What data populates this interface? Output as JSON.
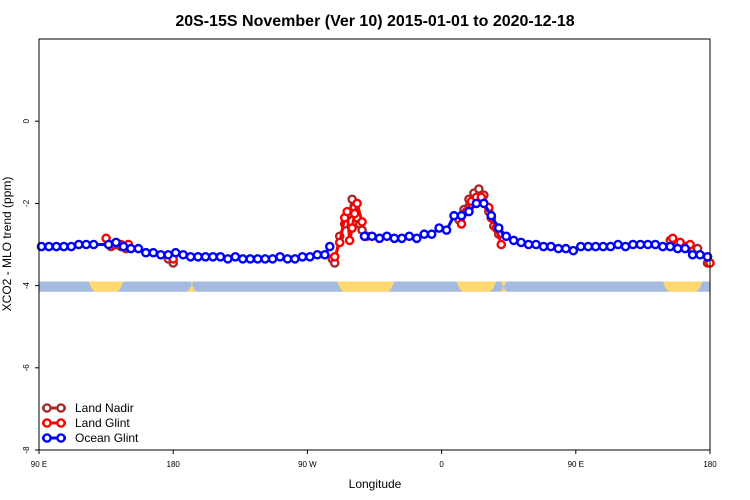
{
  "chart_data": {
    "type": "line",
    "title": "20S-15S November (Ver 10)   2015-01-01 to 2020-12-18",
    "xlabel": "Longitude",
    "ylabel": "XCO2 - MLO trend (ppm)",
    "xlim": [
      -90,
      180
    ],
    "ylim": [
      -8,
      2
    ],
    "x_ticks": [
      {
        "value": -90,
        "label": "90 E"
      },
      {
        "value": -36,
        "label": "180"
      },
      {
        "value": 18,
        "label": "90 W"
      },
      {
        "value": 72,
        "label": "0"
      },
      {
        "value": 126,
        "label": "90 E"
      },
      {
        "value": 180,
        "label": "180"
      }
    ],
    "y_ticks": [
      0,
      -2,
      -4,
      -6,
      -8
    ],
    "legend": {
      "placement": "bottom-left"
    },
    "colors": {
      "land_nadir": "#a52a2a",
      "land_glint": "#ff0000",
      "ocean_glint": "#0000ff",
      "ocean_band": "#a4bbdf",
      "land_band": "#ffd970"
    },
    "surface_band": {
      "y_range": [
        -4.15,
        -3.9
      ],
      "land_segments": [
        [
          -70,
          -56
        ],
        [
          -29,
          -28
        ],
        [
          30,
          53
        ],
        [
          78,
          94
        ],
        [
          96,
          98
        ],
        [
          161,
          177
        ]
      ]
    },
    "series": [
      {
        "name": "Land Nadir",
        "key": "land_nadir",
        "segments": [
          [
            [
              -61,
              -3.05
            ],
            [
              -59,
              -3.0
            ],
            [
              -57,
              -3.05
            ],
            [
              -55,
              -3.1
            ],
            [
              -54,
              -3.05
            ]
          ],
          [
            [
              -38,
              -3.35
            ],
            [
              -36,
              -3.45
            ]
          ],
          [
            [
              28,
              -3.35
            ],
            [
              29,
              -3.45
            ],
            [
              31,
              -2.8
            ],
            [
              33,
              -2.5
            ],
            [
              34,
              -2.3
            ],
            [
              35,
              -2.25
            ],
            [
              36,
              -1.9
            ],
            [
              37,
              -2.1
            ],
            [
              38,
              -2.35
            ],
            [
              39,
              -2.5
            ],
            [
              40,
              -2.65
            ],
            [
              41,
              -2.8
            ],
            [
              42,
              -2.8
            ]
          ],
          [
            [
              79,
              -2.4
            ],
            [
              81,
              -2.15
            ],
            [
              83,
              -1.9
            ],
            [
              85,
              -1.75
            ],
            [
              87,
              -1.65
            ],
            [
              89,
              -1.8
            ],
            [
              91,
              -2.2
            ],
            [
              92,
              -2.35
            ],
            [
              93,
              -2.55
            ],
            [
              95,
              -2.75
            ]
          ],
          [
            [
              164,
              -2.9
            ],
            [
              167,
              -3.0
            ],
            [
              171,
              -3.05
            ],
            [
              175,
              -3.1
            ]
          ],
          [
            [
              179,
              -3.45
            ]
          ]
        ]
      },
      {
        "name": "Land Glint",
        "key": "land_glint",
        "segments": [
          [
            [
              -63,
              -2.85
            ],
            [
              -60,
              -3.0
            ],
            [
              -57,
              -3.0
            ],
            [
              -54,
              -3.0
            ]
          ],
          [
            [
              -36,
              -3.35
            ]
          ],
          [
            [
              29,
              -3.3
            ],
            [
              31,
              -2.95
            ],
            [
              33,
              -2.35
            ],
            [
              34,
              -2.2
            ],
            [
              35,
              -2.9
            ],
            [
              36,
              -2.6
            ],
            [
              37,
              -2.25
            ],
            [
              38,
              -2.0
            ],
            [
              40,
              -2.45
            ]
          ],
          [
            [
              80,
              -2.5
            ],
            [
              82,
              -2.2
            ],
            [
              84,
              -1.95
            ],
            [
              86,
              -1.85
            ],
            [
              88,
              -1.85
            ],
            [
              91,
              -2.1
            ],
            [
              92,
              -2.35
            ],
            [
              94,
              -2.6
            ],
            [
              96,
              -3.0
            ]
          ],
          [
            [
              165,
              -2.85
            ],
            [
              168,
              -2.95
            ],
            [
              172,
              -3.0
            ]
          ],
          [
            [
              180,
              -3.45
            ]
          ]
        ]
      },
      {
        "name": "Ocean Glint",
        "key": "ocean_glint",
        "segments": [
          [
            [
              -89,
              -3.05
            ],
            [
              -86,
              -3.05
            ],
            [
              -83,
              -3.05
            ],
            [
              -80,
              -3.05
            ],
            [
              -77,
              -3.05
            ],
            [
              -74,
              -3.0
            ],
            [
              -71,
              -3.0
            ],
            [
              -68,
              -3.0
            ],
            [
              -62,
              -3.0
            ],
            [
              -59,
              -2.95
            ],
            [
              -56,
              -3.05
            ],
            [
              -53,
              -3.1
            ],
            [
              -50,
              -3.1
            ],
            [
              -47,
              -3.2
            ],
            [
              -44,
              -3.2
            ],
            [
              -41,
              -3.25
            ],
            [
              -38,
              -3.25
            ],
            [
              -35,
              -3.2
            ],
            [
              -32,
              -3.25
            ],
            [
              -29,
              -3.3
            ],
            [
              -26,
              -3.3
            ],
            [
              -23,
              -3.3
            ],
            [
              -20,
              -3.3
            ],
            [
              -17,
              -3.3
            ],
            [
              -14,
              -3.35
            ],
            [
              -11,
              -3.3
            ],
            [
              -8,
              -3.35
            ],
            [
              -5,
              -3.35
            ],
            [
              -2,
              -3.35
            ],
            [
              1,
              -3.35
            ],
            [
              4,
              -3.35
            ],
            [
              7,
              -3.3
            ],
            [
              10,
              -3.35
            ],
            [
              13,
              -3.35
            ],
            [
              16,
              -3.3
            ],
            [
              19,
              -3.3
            ],
            [
              22,
              -3.25
            ],
            [
              25,
              -3.25
            ],
            [
              27,
              -3.05
            ]
          ],
          [
            [
              41,
              -2.8
            ],
            [
              44,
              -2.8
            ],
            [
              47,
              -2.85
            ],
            [
              50,
              -2.8
            ],
            [
              53,
              -2.85
            ],
            [
              56,
              -2.85
            ],
            [
              59,
              -2.8
            ],
            [
              62,
              -2.85
            ],
            [
              65,
              -2.75
            ],
            [
              68,
              -2.75
            ],
            [
              71,
              -2.6
            ],
            [
              74,
              -2.65
            ],
            [
              77,
              -2.3
            ],
            [
              80,
              -2.3
            ],
            [
              83,
              -2.2
            ],
            [
              86,
              -2.0
            ],
            [
              89,
              -2.0
            ],
            [
              92,
              -2.3
            ],
            [
              95,
              -2.6
            ],
            [
              98,
              -2.8
            ],
            [
              101,
              -2.9
            ],
            [
              104,
              -2.95
            ],
            [
              107,
              -3.0
            ],
            [
              110,
              -3.0
            ],
            [
              113,
              -3.05
            ],
            [
              116,
              -3.05
            ],
            [
              119,
              -3.1
            ],
            [
              122,
              -3.1
            ],
            [
              125,
              -3.15
            ],
            [
              128,
              -3.05
            ],
            [
              131,
              -3.05
            ],
            [
              134,
              -3.05
            ],
            [
              137,
              -3.05
            ],
            [
              140,
              -3.05
            ],
            [
              143,
              -3.0
            ],
            [
              146,
              -3.05
            ],
            [
              149,
              -3.0
            ],
            [
              152,
              -3.0
            ],
            [
              155,
              -3.0
            ],
            [
              158,
              -3.0
            ],
            [
              161,
              -3.05
            ],
            [
              164,
              -3.05
            ],
            [
              167,
              -3.1
            ],
            [
              170,
              -3.1
            ],
            [
              173,
              -3.25
            ],
            [
              176,
              -3.25
            ],
            [
              179,
              -3.3
            ]
          ]
        ]
      }
    ]
  }
}
